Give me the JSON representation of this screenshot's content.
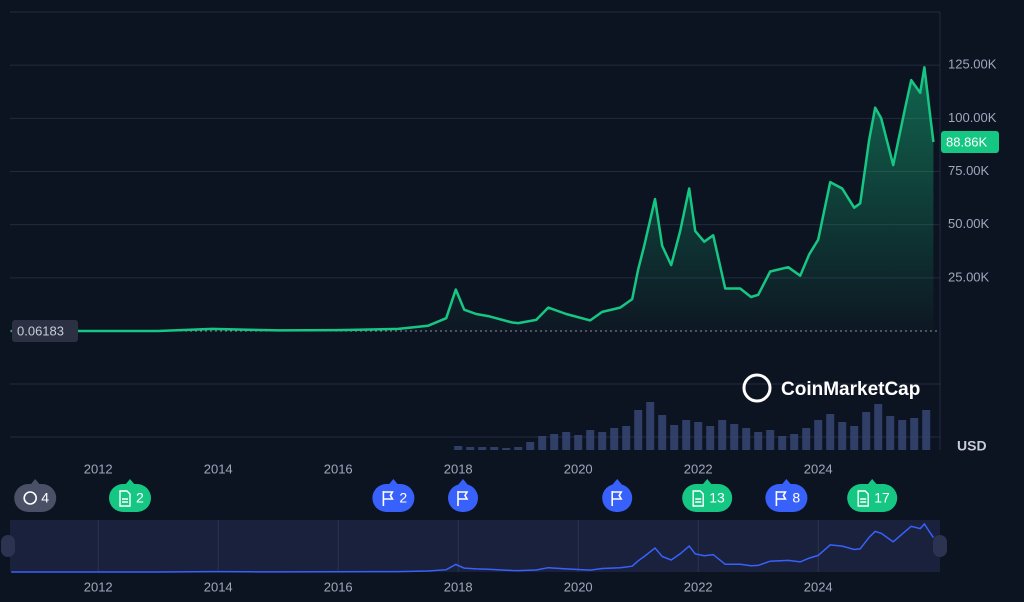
{
  "chart_data": {
    "type": "line",
    "brand": "CoinMarketCap",
    "currency": "USD",
    "color": "#16c784",
    "navigator_color": "#3861fb",
    "x": [
      2010.55,
      2011.5,
      2012.0,
      2013.0,
      2013.9,
      2014.5,
      2015.0,
      2016.0,
      2017.0,
      2017.5,
      2017.8,
      2017.96,
      2018.1,
      2018.3,
      2018.5,
      2018.9,
      2019.0,
      2019.3,
      2019.5,
      2019.8,
      2020.2,
      2020.4,
      2020.7,
      2020.9,
      2021.0,
      2021.1,
      2021.28,
      2021.4,
      2021.55,
      2021.7,
      2021.85,
      2021.95,
      2022.1,
      2022.25,
      2022.45,
      2022.7,
      2022.88,
      2023.0,
      2023.2,
      2023.5,
      2023.7,
      2023.85,
      2024.0,
      2024.2,
      2024.4,
      2024.6,
      2024.7,
      2024.85,
      2024.95,
      2025.05,
      2025.25,
      2025.45,
      2025.55,
      2025.7,
      2025.77,
      2025.85,
      2025.92
    ],
    "values": [
      0.06183,
      15,
      5,
      13,
      1000,
      600,
      300,
      430,
      1000,
      2500,
      6000,
      19500,
      10000,
      8000,
      7000,
      4000,
      3700,
      5200,
      11000,
      8000,
      5000,
      9000,
      11000,
      15000,
      29000,
      40000,
      62000,
      40000,
      31000,
      47000,
      67000,
      47000,
      42000,
      45000,
      20000,
      20000,
      16000,
      17000,
      28000,
      30000,
      26000,
      36000,
      43000,
      70000,
      67000,
      58000,
      60000,
      90000,
      105000,
      100000,
      78000,
      105000,
      118000,
      112000,
      124000,
      105000,
      88860
    ],
    "value_labels": [
      "0.06183",
      null,
      null,
      null,
      null,
      null,
      null,
      null,
      null,
      null,
      null,
      null,
      null,
      null,
      null,
      null,
      null,
      null,
      null,
      null,
      null,
      null,
      null,
      null,
      null,
      null,
      null,
      null,
      null,
      null,
      null,
      null,
      null,
      null,
      null,
      null,
      null,
      null,
      null,
      null,
      null,
      null,
      null,
      null,
      null,
      null,
      null,
      null,
      null,
      null,
      null,
      null,
      null,
      null,
      null,
      null,
      "88.86K"
    ],
    "volume": {
      "x": [
        2018.0,
        2018.2,
        2018.4,
        2018.6,
        2018.8,
        2019.0,
        2019.2,
        2019.4,
        2019.6,
        2019.8,
        2020.0,
        2020.2,
        2020.4,
        2020.6,
        2020.8,
        2021.0,
        2021.2,
        2021.4,
        2021.6,
        2021.8,
        2022.0,
        2022.2,
        2022.4,
        2022.6,
        2022.8,
        2023.0,
        2023.2,
        2023.4,
        2023.6,
        2023.8,
        2024.0,
        2024.2,
        2024.4,
        2024.6,
        2024.8,
        2025.0,
        2025.2,
        2025.4,
        2025.6,
        2025.8
      ],
      "values": [
        4,
        3,
        3,
        3,
        2,
        3,
        8,
        14,
        16,
        18,
        15,
        20,
        18,
        22,
        24,
        40,
        48,
        35,
        25,
        30,
        28,
        24,
        30,
        26,
        22,
        18,
        20,
        14,
        16,
        22,
        30,
        36,
        28,
        24,
        38,
        46,
        34,
        30,
        32,
        40
      ]
    },
    "xlim": [
      2010.53,
      2026.03
    ],
    "xticks": [
      2012,
      2014,
      2016,
      2018,
      2020,
      2022,
      2024
    ],
    "ylim": [
      0,
      150000
    ],
    "yticks": [
      {
        "value": 25000,
        "label": "25.00K"
      },
      {
        "value": 50000,
        "label": "50.00K"
      },
      {
        "value": 75000,
        "label": "75.00K"
      },
      {
        "value": 100000,
        "label": "100.00K"
      },
      {
        "value": 125000,
        "label": "125.00K"
      }
    ],
    "grid": true,
    "events": [
      {
        "x": 2010.95,
        "kind": "history",
        "count": 4
      },
      {
        "x": 2012.53,
        "kind": "doc",
        "count": 2
      },
      {
        "x": 2016.92,
        "kind": "flag",
        "count": 2
      },
      {
        "x": 2018.08,
        "kind": "flag"
      },
      {
        "x": 2020.65,
        "kind": "flag"
      },
      {
        "x": 2022.15,
        "kind": "doc",
        "count": 13
      },
      {
        "x": 2023.47,
        "kind": "flag",
        "count": 8
      },
      {
        "x": 2024.9,
        "kind": "doc",
        "count": 17
      }
    ]
  }
}
